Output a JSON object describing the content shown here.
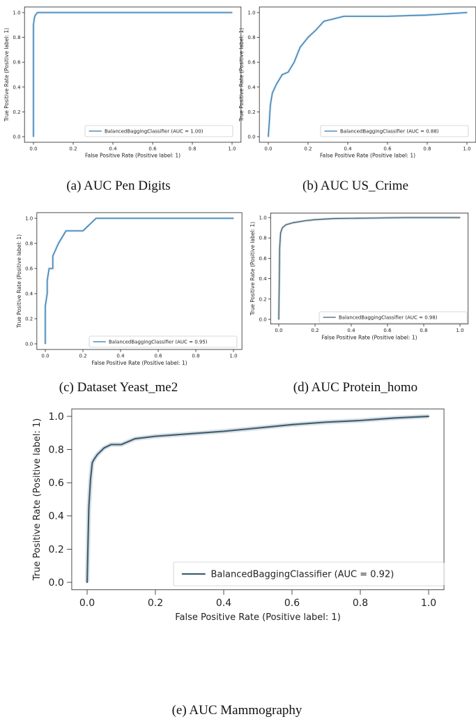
{
  "colors": {
    "roc_line": "#2b78b4",
    "roc_line_dark": "#3f5f73",
    "axis": "#222222",
    "legend_border": "#cccccc"
  },
  "chart_data": [
    {
      "type": "line",
      "caption": "(a) AUC Pen Digits",
      "xlabel": "False Positive Rate (Positive label: 1)",
      "ylabel": "True Positive Rate (Positive label: 1)",
      "xlim": [
        0,
        1
      ],
      "ylim": [
        0,
        1
      ],
      "xticks": [
        "0.0",
        "0.2",
        "0.4",
        "0.6",
        "0.8",
        "1.0"
      ],
      "yticks": [
        "0.0",
        "0.2",
        "0.4",
        "0.6",
        "0.8",
        "1.0"
      ],
      "legend": "BalancedBaggingClassifier (AUC = 1.00)",
      "legend_position": "lower-right",
      "grid": false,
      "series": [
        {
          "name": "BalancedBaggingClassifier",
          "x": [
            0.0,
            0.0,
            0.005,
            0.01,
            0.015,
            0.02,
            0.04,
            1.0
          ],
          "y": [
            0.0,
            0.9,
            0.96,
            0.98,
            0.99,
            1.0,
            1.0,
            1.0
          ]
        }
      ]
    },
    {
      "type": "line",
      "caption": "(b) AUC US_Crime",
      "xlabel": "False Positive Rate (Positive label: 1)",
      "ylabel": "True Positive Rate (Positive label: 1)",
      "xlim": [
        0,
        1
      ],
      "ylim": [
        0,
        1
      ],
      "xticks": [
        "0.0",
        "0.2",
        "0.4",
        "0.6",
        "0.8",
        "1.0"
      ],
      "yticks": [
        "0.0",
        "0.2",
        "0.4",
        "0.6",
        "0.8",
        "1.0"
      ],
      "legend": "BalancedBaggingClassifier (AUC = 0.88)",
      "legend_position": "lower-right",
      "grid": false,
      "series": [
        {
          "name": "BalancedBaggingClassifier",
          "x": [
            0.0,
            0.005,
            0.01,
            0.02,
            0.04,
            0.07,
            0.1,
            0.13,
            0.16,
            0.2,
            0.24,
            0.28,
            0.38,
            0.6,
            0.8,
            1.0
          ],
          "y": [
            0.0,
            0.12,
            0.25,
            0.35,
            0.42,
            0.5,
            0.52,
            0.6,
            0.72,
            0.8,
            0.86,
            0.93,
            0.97,
            0.97,
            0.98,
            1.0
          ]
        }
      ]
    },
    {
      "type": "line",
      "caption": "(c) Dataset Yeast_me2",
      "xlabel": "False Positive Rate (Positive label: 1)",
      "ylabel": "True Positive Rate (Positive label: 1)",
      "xlim": [
        0,
        1
      ],
      "ylim": [
        0,
        1
      ],
      "xticks": [
        "0.0",
        "0.2",
        "0.4",
        "0.6",
        "0.8",
        "1.0"
      ],
      "yticks": [
        "0.0",
        "0.2",
        "0.4",
        "0.6",
        "0.8",
        "1.0"
      ],
      "legend": "BalancedBaggingClassifier (AUC = 0.95)",
      "legend_position": "lower-right",
      "grid": false,
      "series": [
        {
          "name": "BalancedBaggingClassifier",
          "x": [
            0.0,
            0.0,
            0.01,
            0.01,
            0.02,
            0.02,
            0.04,
            0.04,
            0.07,
            0.07,
            0.11,
            0.11,
            0.2,
            0.2,
            0.27,
            0.27,
            1.0
          ],
          "y": [
            0.0,
            0.3,
            0.4,
            0.5,
            0.6,
            0.6,
            0.6,
            0.7,
            0.8,
            0.8,
            0.9,
            0.9,
            0.9,
            0.9,
            1.0,
            1.0,
            1.0
          ]
        }
      ]
    },
    {
      "type": "line",
      "caption": "(d) AUC Protein_homo",
      "xlabel": "False Positive Rate (Positive label: 1)",
      "ylabel": "True Positive Rate (Positive label: 1)",
      "xlim": [
        0,
        1
      ],
      "ylim": [
        0,
        1
      ],
      "xticks": [
        "0.0",
        "0.2",
        "0.4",
        "0.6",
        "0.8",
        "1.0"
      ],
      "yticks": [
        "0.0",
        "0.2",
        "0.4",
        "0.6",
        "0.8",
        "1.0"
      ],
      "legend": "BalancedBaggingClassifier (AUC = 0.98)",
      "legend_position": "lower-right",
      "grid": false,
      "series": [
        {
          "name": "BalancedBaggingClassifier",
          "x": [
            0.0,
            0.005,
            0.01,
            0.02,
            0.04,
            0.08,
            0.15,
            0.2,
            0.3,
            0.5,
            0.7,
            1.0
          ],
          "y": [
            0.0,
            0.7,
            0.85,
            0.9,
            0.93,
            0.95,
            0.97,
            0.98,
            0.99,
            0.995,
            1.0,
            1.0
          ]
        }
      ]
    },
    {
      "type": "line",
      "caption": "(e) AUC Mammography",
      "xlabel": "False Positive Rate (Positive label: 1)",
      "ylabel": "True Positive Rate (Positive label: 1)",
      "xlim": [
        0,
        1
      ],
      "ylim": [
        0,
        1
      ],
      "xticks": [
        "0.0",
        "0.2",
        "0.4",
        "0.6",
        "0.8",
        "1.0"
      ],
      "yticks": [
        "0.0",
        "0.2",
        "0.4",
        "0.6",
        "0.8",
        "1.0"
      ],
      "legend": "BalancedBaggingClassifier (AUC = 0.92)",
      "legend_position": "lower-right",
      "grid": false,
      "series": [
        {
          "name": "BalancedBaggingClassifier",
          "x": [
            0.0,
            0.005,
            0.01,
            0.015,
            0.02,
            0.03,
            0.05,
            0.07,
            0.1,
            0.14,
            0.2,
            0.3,
            0.4,
            0.5,
            0.6,
            0.7,
            0.8,
            0.9,
            1.0
          ],
          "y": [
            0.0,
            0.45,
            0.62,
            0.72,
            0.74,
            0.77,
            0.81,
            0.83,
            0.83,
            0.865,
            0.88,
            0.895,
            0.91,
            0.93,
            0.95,
            0.965,
            0.975,
            0.99,
            1.0
          ]
        }
      ]
    }
  ]
}
